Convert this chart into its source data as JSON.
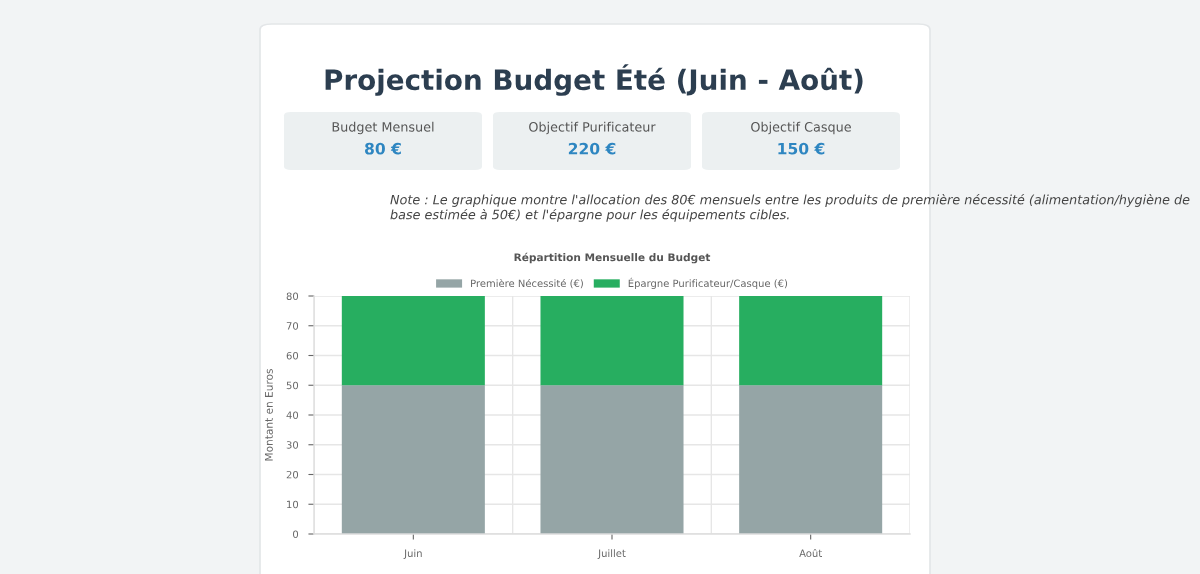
{
  "chart_data": [
    {
      "type": "other",
      "title": "Projection Budget Été (Juin - Août)",
      "annotations": [
        "Budget Mensuel",
        "80 €",
        "Objectif Purificateur",
        "220 €",
        "Objectif Casque",
        "150 €",
        "Note : Le graphique montre l'allocation des 80€ mensuels entre les produits de première nécessité (alimentation/hygiène de base estimée à 50€) et l'épargne pour les équipements cibles."
      ]
    },
    {
      "type": "bar",
      "title": "Répartition Mensuelle du Budget",
      "ylabel": "Montant en Euros",
      "categories": [
        "Juin",
        "Juillet",
        "Août"
      ],
      "stacked": true,
      "series": [
        {
          "name": "Première Nécessité (€)",
          "color": "#95a5a6",
          "values": [
            50,
            50,
            50
          ]
        },
        {
          "name": "Épargne Purificateur/Casque (€)",
          "color": "#27ae60",
          "values": [
            30,
            30,
            30
          ]
        }
      ],
      "ylim": [
        0,
        80
      ],
      "yticks": [
        0,
        10,
        20,
        30,
        40,
        50,
        60,
        70,
        80
      ],
      "grid": true,
      "legend": "top"
    }
  ]
}
